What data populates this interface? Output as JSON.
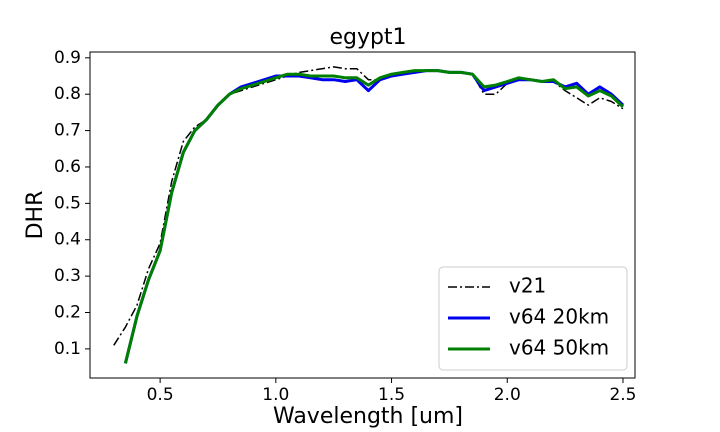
{
  "chart_data": {
    "type": "line",
    "title": "egypt1",
    "xlabel": "Wavelength [um]",
    "ylabel": "DHR",
    "x": [
      0.3,
      0.35,
      0.4,
      0.45,
      0.5,
      0.55,
      0.6,
      0.65,
      0.7,
      0.75,
      0.8,
      0.85,
      0.9,
      0.95,
      1.0,
      1.05,
      1.1,
      1.15,
      1.2,
      1.25,
      1.3,
      1.35,
      1.4,
      1.45,
      1.5,
      1.55,
      1.6,
      1.65,
      1.7,
      1.75,
      1.8,
      1.85,
      1.9,
      1.95,
      2.0,
      2.05,
      2.1,
      2.15,
      2.2,
      2.25,
      2.3,
      2.35,
      2.4,
      2.45,
      2.5
    ],
    "series": [
      {
        "name": "v21",
        "color": "#000000",
        "linestyle": "dashdot",
        "values": [
          0.11,
          0.16,
          0.22,
          0.32,
          0.39,
          0.56,
          0.67,
          0.71,
          0.73,
          0.77,
          0.8,
          0.81,
          0.82,
          0.83,
          0.84,
          0.85,
          0.86,
          0.865,
          0.87,
          0.875,
          0.87,
          0.87,
          0.84,
          0.84,
          0.85,
          0.86,
          0.865,
          0.865,
          0.865,
          0.86,
          0.86,
          0.855,
          0.8,
          0.8,
          0.83,
          0.84,
          0.84,
          0.835,
          0.835,
          0.81,
          0.79,
          0.77,
          0.79,
          0.78,
          0.76
        ]
      },
      {
        "name": "v64 20km",
        "color": "#0000ee",
        "linestyle": "solid",
        "values": [
          null,
          0.06,
          0.19,
          0.29,
          0.37,
          0.53,
          0.64,
          0.7,
          0.73,
          0.77,
          0.8,
          0.82,
          0.83,
          0.84,
          0.85,
          0.85,
          0.85,
          0.845,
          0.84,
          0.84,
          0.835,
          0.84,
          0.81,
          0.84,
          0.85,
          0.855,
          0.86,
          0.865,
          0.865,
          0.86,
          0.86,
          0.855,
          0.81,
          0.82,
          0.83,
          0.84,
          0.84,
          0.835,
          0.835,
          0.82,
          0.83,
          0.8,
          0.82,
          0.8,
          0.77
        ]
      },
      {
        "name": "v64 50km",
        "color": "#008000",
        "linestyle": "solid",
        "values": [
          null,
          0.06,
          0.19,
          0.29,
          0.37,
          0.53,
          0.64,
          0.7,
          0.73,
          0.77,
          0.8,
          0.815,
          0.825,
          0.835,
          0.845,
          0.855,
          0.855,
          0.85,
          0.85,
          0.85,
          0.845,
          0.845,
          0.825,
          0.845,
          0.855,
          0.86,
          0.865,
          0.865,
          0.865,
          0.86,
          0.86,
          0.855,
          0.82,
          0.825,
          0.835,
          0.845,
          0.84,
          0.835,
          0.84,
          0.815,
          0.82,
          0.795,
          0.81,
          0.795,
          0.765
        ]
      }
    ],
    "xlim": [
      0.197,
      2.552
    ],
    "ylim": [
      0.02,
      0.916
    ],
    "xticks": [
      0.5,
      {
        "value": 1,
        "label": "1.0"
      },
      1.5,
      {
        "value": 2,
        "label": "2.0"
      },
      2.5
    ],
    "yticks": [
      0.1,
      0.2,
      0.3,
      0.4,
      0.5,
      0.6,
      0.7,
      0.8,
      0.9
    ],
    "legend": "lower right",
    "grid": false
  }
}
